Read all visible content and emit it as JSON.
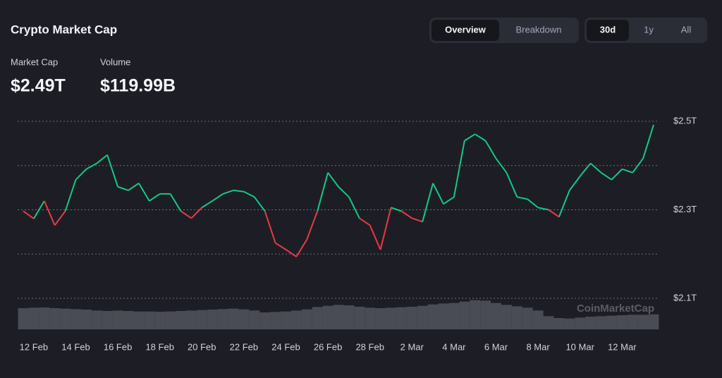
{
  "header": {
    "title": "Crypto Market Cap",
    "tabs": [
      "Overview",
      "Breakdown"
    ],
    "ranges": [
      "30d",
      "1y",
      "All"
    ],
    "stats": [
      {
        "label": "Market Cap",
        "value": "$2.49T"
      },
      {
        "label": "Volume",
        "value": "$119.99B"
      }
    ],
    "watermark": "CoinMarketCap"
  },
  "chart_data": {
    "type": "line",
    "categories": [
      null,
      "12 Feb",
      null,
      null,
      null,
      "14 Feb",
      null,
      null,
      null,
      "16 Feb",
      null,
      null,
      null,
      "18 Feb",
      null,
      null,
      null,
      "20 Feb",
      null,
      null,
      null,
      "22 Feb",
      null,
      null,
      null,
      "24 Feb",
      null,
      null,
      null,
      "26 Feb",
      null,
      null,
      null,
      "28 Feb",
      null,
      null,
      null,
      "2 Mar",
      null,
      null,
      null,
      "4 Mar",
      null,
      null,
      null,
      "6 Mar",
      null,
      null,
      null,
      "8 Mar",
      null,
      null,
      null,
      "10 Mar",
      null,
      null,
      null,
      "12 Mar",
      null,
      null,
      null
    ],
    "series": [
      {
        "name": "Market Cap",
        "color_up": "#16c784",
        "color_down": "#ea3943",
        "values": [
          2.297,
          2.28,
          2.32,
          2.265,
          2.297,
          2.368,
          2.392,
          2.405,
          2.424,
          2.352,
          2.344,
          2.36,
          2.32,
          2.336,
          2.336,
          2.297,
          2.281,
          2.305,
          2.32,
          2.336,
          2.344,
          2.341,
          2.329,
          2.297,
          2.225,
          2.21,
          2.194,
          2.233,
          2.297,
          2.384,
          2.352,
          2.329,
          2.281,
          2.265,
          2.21,
          2.305,
          2.297,
          2.281,
          2.273,
          2.36,
          2.313,
          2.329,
          2.456,
          2.471,
          2.456,
          2.416,
          2.384,
          2.329,
          2.324,
          2.305,
          2.3,
          2.284,
          2.344,
          2.376,
          2.405,
          2.384,
          2.368,
          2.392,
          2.384,
          2.416,
          2.492
        ]
      },
      {
        "name": "Volume",
        "color": "#4a4c55",
        "values": [
          90,
          92,
          93,
          90,
          88,
          86,
          84,
          80,
          78,
          80,
          78,
          76,
          76,
          75,
          76,
          78,
          80,
          82,
          84,
          86,
          88,
          85,
          80,
          72,
          74,
          76,
          80,
          85,
          95,
          100,
          104,
          102,
          96,
          92,
          90,
          92,
          94,
          96,
          100,
          106,
          110,
          112,
          118,
          124,
          122,
          112,
          104,
          98,
          92,
          80,
          56,
          48,
          46,
          50,
          54,
          56,
          58,
          60,
          62,
          62,
          64
        ]
      }
    ],
    "ylim": [
      2.1,
      2.5
    ],
    "yticks": [
      {
        "value": 2.1,
        "label": "$2.1T"
      },
      {
        "value": 2.3,
        "label": "$2.3T"
      },
      {
        "value": 2.5,
        "label": "$2.5T"
      }
    ],
    "ygrid": [
      2.1,
      2.2,
      2.3,
      2.4,
      2.5
    ],
    "volume_lim": [
      0,
      150
    ],
    "grid": true
  }
}
